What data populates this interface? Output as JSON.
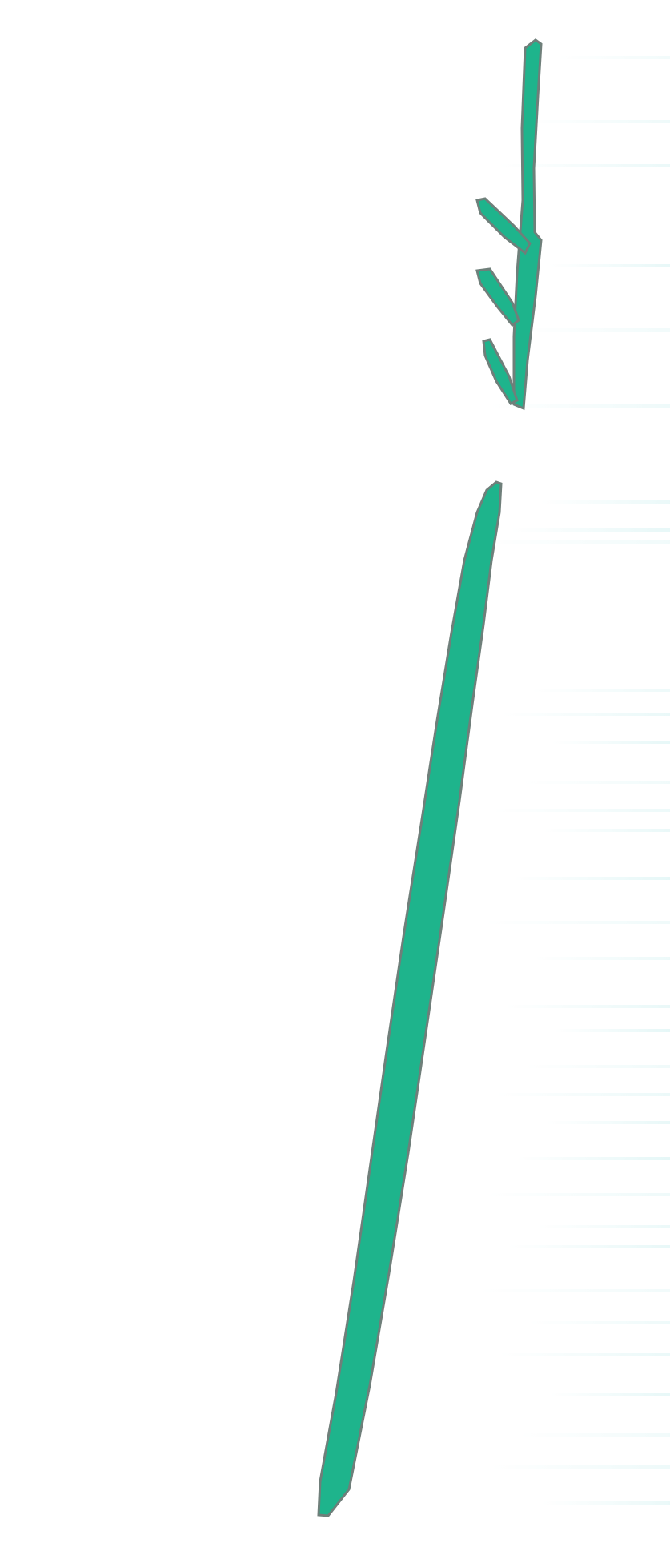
{
  "colors": {
    "background": "#ffffff",
    "stroke_fill": "#1eb48c",
    "stroke_edge": "#6f7f7a",
    "streak": "#e2f6f6"
  },
  "icons": {
    "arrow_top": "down-arrow-sketch-icon",
    "line_bottom": "diagonal-stroke-icon"
  }
}
